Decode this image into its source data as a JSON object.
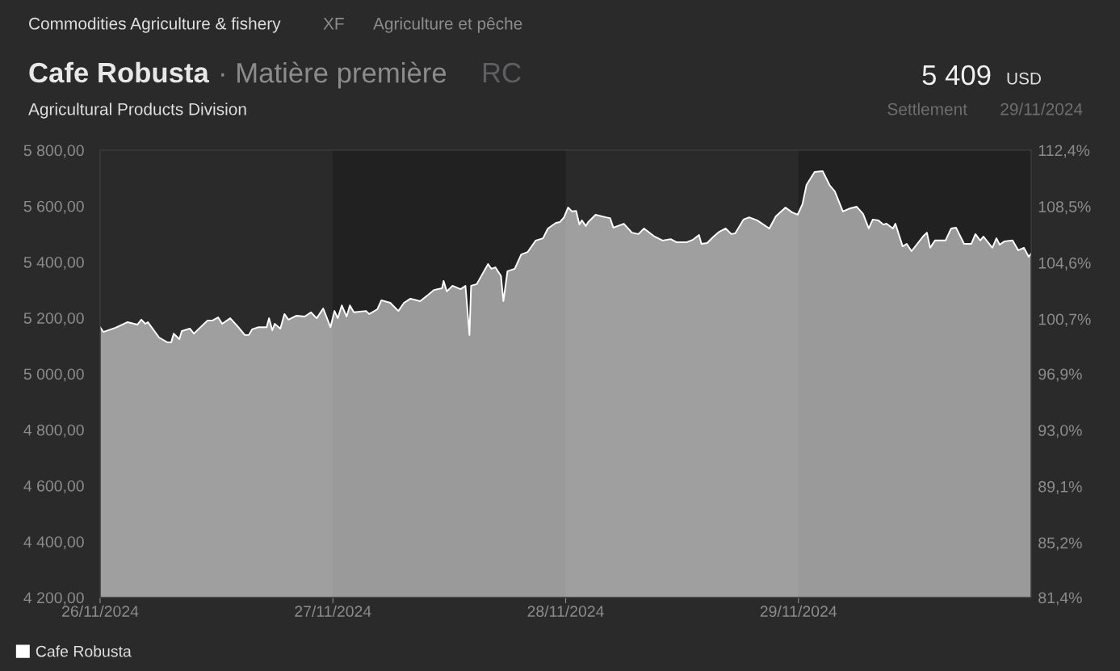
{
  "chart_data": {
    "type": "area",
    "title": "Cafe Robusta",
    "annotations": [
      "Commodities Agriculture & fishery",
      "XF",
      "Agriculture et pêche",
      "· Matière première",
      "RC",
      "Agricultural Products Division",
      "5 409",
      "USD",
      "Settlement",
      "29/11/2024"
    ],
    "xlim": [
      "2024-11-26T00:00",
      "2024-11-30T00:00"
    ],
    "xticks": [
      {
        "value": "2024-11-26",
        "label": "26/11/2024"
      },
      {
        "value": "2024-11-27",
        "label": "27/11/2024"
      },
      {
        "value": "2024-11-28",
        "label": "28/11/2024"
      },
      {
        "value": "2024-11-29",
        "label": "29/11/2024"
      }
    ],
    "ylim": [
      4200,
      5800
    ],
    "yticks": [
      {
        "value": 4200,
        "label": "4 200,00"
      },
      {
        "value": 4400,
        "label": "4 400,00"
      },
      {
        "value": 4600,
        "label": "4 600,00"
      },
      {
        "value": 4800,
        "label": "4 800,00"
      },
      {
        "value": 5000,
        "label": "5 000,00"
      },
      {
        "value": 5200,
        "label": "5 200,00"
      },
      {
        "value": 5400,
        "label": "5 400,00"
      },
      {
        "value": 5600,
        "label": "5 600,00"
      },
      {
        "value": 5800,
        "label": "5 800,00"
      }
    ],
    "y2lim": [
      81.4,
      112.4
    ],
    "y2ticks": [
      {
        "value": 81.4,
        "label": "81,4%"
      },
      {
        "value": 85.2,
        "label": "85,2%"
      },
      {
        "value": 89.1,
        "label": "89,1%"
      },
      {
        "value": 93.0,
        "label": "93,0%"
      },
      {
        "value": 96.9,
        "label": "96,9%"
      },
      {
        "value": 100.7,
        "label": "100,7%"
      },
      {
        "value": 104.6,
        "label": "104,6%"
      },
      {
        "value": 108.5,
        "label": "108,5%"
      },
      {
        "value": 112.4,
        "label": "112,4%"
      }
    ],
    "bands": [
      {
        "axis": "x",
        "from": "2024-11-27",
        "to": "2024-11-28",
        "color": "#212121"
      },
      {
        "axis": "x",
        "from": "2024-11-29",
        "to": "2024-11-30",
        "color": "#212121"
      }
    ],
    "grid": false,
    "legend": "bottom left",
    "series": [
      {
        "name": "Cafe Robusta",
        "color": "#ffffff",
        "x": [
          "2024-11-26T00:00",
          "2024-11-26T00:20",
          "2024-11-26T01:35",
          "2024-11-26T02:50",
          "2024-11-26T03:50",
          "2024-11-26T04:15",
          "2024-11-26T04:40",
          "2024-11-26T04:55",
          "2024-11-26T06:05",
          "2024-11-26T06:55",
          "2024-11-26T07:20",
          "2024-11-26T07:35",
          "2024-11-26T08:10",
          "2024-11-26T08:25",
          "2024-11-26T09:15",
          "2024-11-26T09:40",
          "2024-11-26T11:05",
          "2024-11-26T11:35",
          "2024-11-26T12:10",
          "2024-11-26T12:35",
          "2024-11-26T13:25",
          "2024-11-26T14:15",
          "2024-11-26T14:55",
          "2024-11-26T15:20",
          "2024-11-26T15:40",
          "2024-11-26T16:20",
          "2024-11-26T17:10",
          "2024-11-26T17:25",
          "2024-11-26T17:45",
          "2024-11-26T18:00",
          "2024-11-26T18:35",
          "2024-11-26T19:00",
          "2024-11-26T19:25",
          "2024-11-26T20:15",
          "2024-11-26T21:05",
          "2024-11-26T21:45",
          "2024-11-26T22:20",
          "2024-11-26T23:00",
          "2024-11-26T23:45",
          "2024-11-27T00:10",
          "2024-11-27T00:30",
          "2024-11-27T00:55",
          "2024-11-27T01:25",
          "2024-11-27T01:45",
          "2024-11-27T02:10",
          "2024-11-27T03:25",
          "2024-11-27T03:45",
          "2024-11-27T04:35",
          "2024-11-27T05:00",
          "2024-11-27T05:55",
          "2024-11-27T06:45",
          "2024-11-27T07:20",
          "2024-11-27T08:00",
          "2024-11-27T09:00",
          "2024-11-27T09:50",
          "2024-11-27T10:25",
          "2024-11-27T11:15",
          "2024-11-27T11:25",
          "2024-11-27T11:45",
          "2024-11-27T12:20",
          "2024-11-27T13:10",
          "2024-11-27T13:40",
          "2024-11-27T14:05",
          "2024-11-27T14:15",
          "2024-11-27T14:50",
          "2024-11-27T15:15",
          "2024-11-27T16:00",
          "2024-11-27T16:20",
          "2024-11-27T16:45",
          "2024-11-27T17:20",
          "2024-11-27T17:35",
          "2024-11-27T18:00",
          "2024-11-27T18:45",
          "2024-11-27T19:25",
          "2024-11-27T20:05",
          "2024-11-27T20:55",
          "2024-11-27T21:40",
          "2024-11-27T22:10",
          "2024-11-27T23:00",
          "2024-11-27T23:25",
          "2024-11-27T23:50",
          "2024-11-28T00:15",
          "2024-11-28T00:40",
          "2024-11-28T01:05",
          "2024-11-28T01:25",
          "2024-11-28T01:40",
          "2024-11-28T02:05",
          "2024-11-28T02:20",
          "2024-11-28T03:05",
          "2024-11-28T04:10",
          "2024-11-28T04:35",
          "2024-11-28T04:55",
          "2024-11-28T06:00",
          "2024-11-28T06:50",
          "2024-11-28T07:30",
          "2024-11-28T08:05",
          "2024-11-28T09:10",
          "2024-11-28T10:00",
          "2024-11-28T10:50",
          "2024-11-28T11:25",
          "2024-11-28T12:30",
          "2024-11-28T13:05",
          "2024-11-28T13:45",
          "2024-11-28T14:00",
          "2024-11-28T14:35",
          "2024-11-28T15:15",
          "2024-11-28T15:50",
          "2024-11-28T16:30",
          "2024-11-28T17:05",
          "2024-11-28T17:30",
          "2024-11-28T18:20",
          "2024-11-28T18:55",
          "2024-11-28T19:45",
          "2024-11-28T21:00",
          "2024-11-28T21:40",
          "2024-11-28T22:40",
          "2024-11-28T23:20",
          "2024-11-28T23:55",
          "2024-11-29T00:25",
          "2024-11-29T00:50",
          "2024-11-29T01:40",
          "2024-11-29T02:30",
          "2024-11-29T03:15",
          "2024-11-29T03:45",
          "2024-11-29T04:35",
          "2024-11-29T05:20",
          "2024-11-29T06:00",
          "2024-11-29T06:40",
          "2024-11-29T07:15",
          "2024-11-29T07:40",
          "2024-11-29T08:15",
          "2024-11-29T08:45",
          "2024-11-29T09:05",
          "2024-11-29T09:45",
          "2024-11-29T10:00",
          "2024-11-29T10:45",
          "2024-11-29T11:10",
          "2024-11-29T11:40",
          "2024-11-29T12:55",
          "2024-11-29T13:15",
          "2024-11-29T13:35",
          "2024-11-29T14:05",
          "2024-11-29T15:10",
          "2024-11-29T15:45",
          "2024-11-29T16:15",
          "2024-11-29T17:05",
          "2024-11-29T17:50",
          "2024-11-29T18:15",
          "2024-11-29T18:45",
          "2024-11-29T19:05",
          "2024-11-29T20:00",
          "2024-11-29T20:25",
          "2024-11-29T20:45",
          "2024-11-29T21:15",
          "2024-11-29T22:05",
          "2024-11-29T22:40",
          "2024-11-29T23:15",
          "2024-11-29T23:45",
          "2024-11-30T00:00"
        ],
        "values": [
          5167,
          5150,
          5165,
          5185,
          5176,
          5194,
          5179,
          5185,
          5130,
          5113,
          5113,
          5144,
          5124,
          5153,
          5162,
          5144,
          5191,
          5191,
          5202,
          5179,
          5199,
          5167,
          5139,
          5139,
          5159,
          5167,
          5167,
          5199,
          5156,
          5179,
          5162,
          5214,
          5194,
          5208,
          5205,
          5220,
          5199,
          5234,
          5167,
          5225,
          5199,
          5245,
          5205,
          5245,
          5220,
          5225,
          5214,
          5231,
          5263,
          5254,
          5225,
          5254,
          5269,
          5260,
          5283,
          5300,
          5306,
          5332,
          5295,
          5315,
          5303,
          5315,
          5139,
          5315,
          5321,
          5347,
          5393,
          5376,
          5381,
          5350,
          5260,
          5367,
          5376,
          5427,
          5436,
          5477,
          5485,
          5520,
          5540,
          5543,
          5560,
          5595,
          5581,
          5583,
          5534,
          5549,
          5529,
          5543,
          5569,
          5560,
          5557,
          5523,
          5537,
          5505,
          5500,
          5520,
          5491,
          5477,
          5482,
          5471,
          5471,
          5479,
          5497,
          5465,
          5468,
          5491,
          5508,
          5520,
          5500,
          5503,
          5552,
          5560,
          5549,
          5520,
          5563,
          5595,
          5578,
          5569,
          5607,
          5676,
          5722,
          5725,
          5673,
          5653,
          5581,
          5592,
          5598,
          5572,
          5520,
          5552,
          5549,
          5534,
          5537,
          5520,
          5537,
          5456,
          5465,
          5439,
          5494,
          5505,
          5451,
          5477,
          5477,
          5520,
          5523,
          5465,
          5465,
          5500,
          5477,
          5491,
          5451,
          5485,
          5462,
          5474,
          5477,
          5442,
          5451,
          5419,
          5430
        ]
      }
    ]
  }
}
